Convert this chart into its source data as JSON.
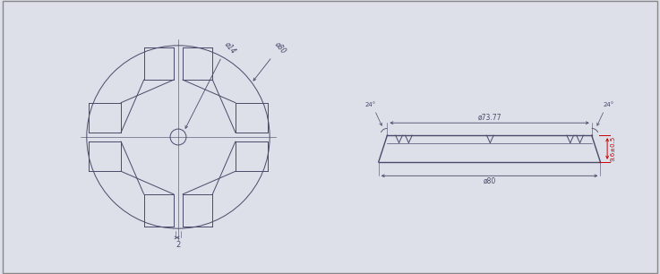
{
  "bg_color": "#dde0e8",
  "line_color": "#4a4a6a",
  "red_color": "#cc0000",
  "fig_width": 7.37,
  "fig_height": 3.06,
  "dpi": 100,
  "phi73_77": "ø73.77",
  "phi80": "ø80",
  "phi14": "ø14",
  "angle_label": "24°",
  "thickness_label": "9.6±0.5",
  "dim_2": "2"
}
